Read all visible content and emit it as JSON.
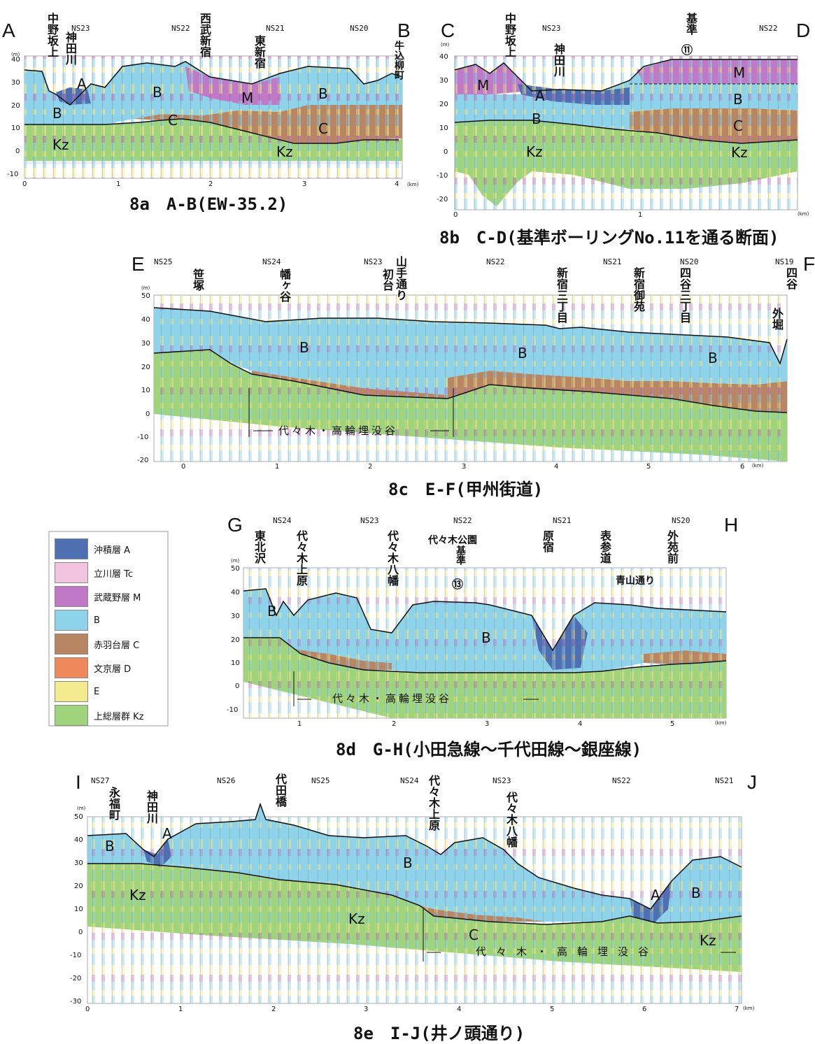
{
  "legend": [
    {
      "label": "沖積層 A",
      "color": "#4f6fb3"
    },
    {
      "label": "立川層 Tc",
      "color": "#f2c4e0"
    },
    {
      "label": "武蔵野層 M",
      "color": "#c079c7"
    },
    {
      "label": "B",
      "color": "#8fd3ea"
    },
    {
      "label": "赤羽台層 C",
      "color": "#b98663"
    },
    {
      "label": "文京層 D",
      "color": "#f08a5c"
    },
    {
      "label": "E",
      "color": "#f3eb8e"
    },
    {
      "label": "上総層群 Kz",
      "color": "#9fd47c"
    }
  ],
  "sections": [
    {
      "id": "8a",
      "caption": "8a　A-B(EW-35.2)",
      "start": "A",
      "end": "B",
      "ns_labels": [
        "NS23",
        "NS22",
        "NS21",
        "NS20"
      ],
      "places": [
        "中野坂上",
        "神田川",
        "西武新宿",
        "東新宿",
        "牛込柳町"
      ],
      "unit_labels": [
        "A",
        "B",
        "B",
        "M",
        "B",
        "C",
        "C",
        "Kz",
        "Kz"
      ],
      "y_ticks": [
        "40",
        "30",
        "20",
        "10",
        "0",
        "-10"
      ],
      "x_ticks": [
        "0",
        "1",
        "2",
        "3",
        "4"
      ],
      "y_unit": "(m)",
      "x_unit": "(km)"
    },
    {
      "id": "8b",
      "caption": "8b　C-D(基準ボーリングNo.11を通る断面)",
      "start": "C",
      "end": "D",
      "ns_labels": [
        "NS23",
        "NS22"
      ],
      "places": [
        "中野坂上",
        "神田川",
        "基準",
        "⑪"
      ],
      "unit_labels": [
        "M",
        "A",
        "B",
        "M",
        "B",
        "C",
        "Kz",
        "Kz"
      ],
      "y_ticks": [
        "40",
        "30",
        "20",
        "10",
        "0",
        "-10",
        "-20"
      ],
      "x_ticks": [
        "0",
        "1"
      ],
      "y_unit": "(m)",
      "x_unit": "(km)"
    },
    {
      "id": "8c",
      "caption": "8c　E-F(甲州街道)",
      "start": "E",
      "end": "F",
      "ns_labels": [
        "NS25",
        "NS24",
        "NS23",
        "NS22",
        "NS21",
        "NS20",
        "NS19"
      ],
      "places": [
        "笹塚",
        "幡ヶ谷",
        "初台",
        "山手通り",
        "新宿三丁目",
        "新宿御苑",
        "四谷三丁目",
        "四谷",
        "外堀"
      ],
      "unit_labels": [
        "B",
        "B",
        "B"
      ],
      "valley": "代々木・高輪埋没谷",
      "y_ticks": [
        "50",
        "40",
        "30",
        "20",
        "10",
        "0",
        "-10",
        "-20"
      ],
      "x_ticks": [
        "0",
        "1",
        "2",
        "3",
        "4",
        "5",
        "6"
      ],
      "y_unit": "(m)",
      "x_unit": "(km)"
    },
    {
      "id": "8d",
      "caption": "8d　G-H(小田急線～千代田線～銀座線)",
      "start": "G",
      "end": "H",
      "ns_labels": [
        "NS24",
        "NS23",
        "NS22",
        "NS21",
        "NS20"
      ],
      "places": [
        "東北沢",
        "代々木上原",
        "代々木八幡",
        "代々木公園",
        "基準",
        "⑬",
        "原宿",
        "表参道",
        "外苑前",
        "青山通り"
      ],
      "unit_labels": [
        "B",
        "B"
      ],
      "valley": "代々木・高輪埋没谷",
      "y_ticks": [
        "50",
        "40",
        "30",
        "20",
        "10",
        "0",
        "-10"
      ],
      "x_ticks": [
        "1",
        "2",
        "3",
        "4",
        "5"
      ],
      "y_unit": "(m)",
      "x_unit": "(km)"
    },
    {
      "id": "8e",
      "caption": "8e　I-J(井ノ頭通り)",
      "start": "I",
      "end": "J",
      "ns_labels": [
        "NS27",
        "NS26",
        "NS25",
        "NS24",
        "NS23",
        "NS22",
        "NS21"
      ],
      "places": [
        "永福町",
        "神田川",
        "代田橋",
        "代々木上原",
        "代々木八幡"
      ],
      "unit_labels": [
        "B",
        "A",
        "Kz",
        "B",
        "Kz",
        "C",
        "A",
        "B",
        "Kz"
      ],
      "valley": "代々木・高輪埋没谷",
      "y_ticks": [
        "50",
        "40",
        "30",
        "20",
        "10",
        "0",
        "-10",
        "-20",
        "-30"
      ],
      "x_ticks": [
        "0",
        "1",
        "2",
        "3",
        "4",
        "5",
        "6",
        "7"
      ],
      "y_unit": "(m)",
      "x_unit": "(km)"
    }
  ]
}
